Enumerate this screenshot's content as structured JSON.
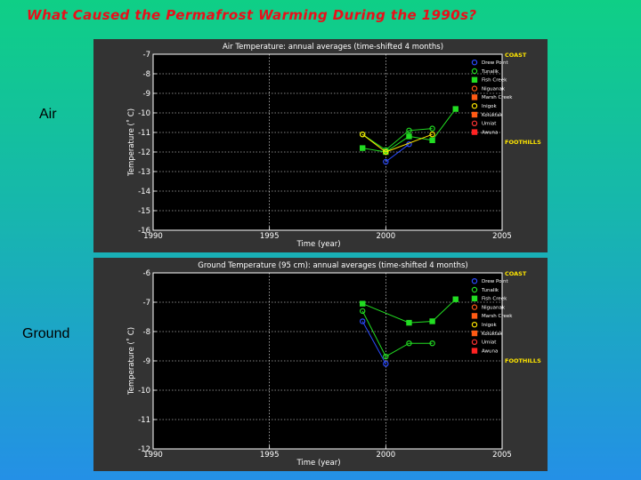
{
  "slide": {
    "title": "What Caused the Permafrost Warming During the 1990s?",
    "labels": {
      "air": "Air",
      "ground": "Ground"
    }
  },
  "legend": {
    "coast_label": "COAST",
    "foothills_label": "FOOTHILLS",
    "stations": [
      {
        "name": "Drew Point",
        "color": "#2a4bff",
        "marker": "circle"
      },
      {
        "name": "Tunalik",
        "color": "#22dd22",
        "marker": "circle"
      },
      {
        "name": "Fish Creek",
        "color": "#22dd22",
        "marker": "square"
      },
      {
        "name": "Niguanak",
        "color": "#ff5a14",
        "marker": "circle"
      },
      {
        "name": "Marsh Creek",
        "color": "#ff5a14",
        "marker": "square"
      },
      {
        "name": "Inigok",
        "color": "#ffe600",
        "marker": "circle"
      },
      {
        "name": "Koluktak",
        "color": "#ff5a14",
        "marker": "square"
      },
      {
        "name": "Umiat",
        "color": "#ff3333",
        "marker": "circle"
      },
      {
        "name": "Awuna",
        "color": "#ff2222",
        "marker": "square"
      }
    ]
  },
  "chart_data": [
    {
      "type": "line",
      "title": "Air Temperature: annual averages (time-shifted 4 months)",
      "xlabel": "Time (year)",
      "ylabel": "Temperature (˚ C)",
      "xlim": [
        1990,
        2005
      ],
      "ylim": [
        -16,
        -7
      ],
      "xticks": [
        1990,
        1995,
        2000,
        2005
      ],
      "yticks": [
        -7,
        -8,
        -9,
        -10,
        -11,
        -12,
        -13,
        -14,
        -15,
        -16
      ],
      "grid": true,
      "legend_position": "right",
      "series": [
        {
          "name": "Drew Point",
          "color": "#2a4bff",
          "marker": "circle",
          "x": [
            2000,
            2001
          ],
          "y": [
            -12.5,
            -11.6
          ]
        },
        {
          "name": "Tunalik",
          "color": "#22dd22",
          "marker": "circle",
          "x": [
            1999,
            2000,
            2001,
            2002
          ],
          "y": [
            -11.1,
            -11.9,
            -10.9,
            -10.8
          ]
        },
        {
          "name": "Fish Creek",
          "color": "#22dd22",
          "marker": "square",
          "x": [
            1999,
            2000,
            2001,
            2002,
            2003
          ],
          "y": [
            -11.8,
            -12.0,
            -11.2,
            -11.4,
            -9.8
          ]
        },
        {
          "name": "Inigok",
          "color": "#ffe600",
          "marker": "circle",
          "x": [
            1999,
            2000,
            2002
          ],
          "y": [
            -11.1,
            -12.0,
            -11.1
          ]
        }
      ]
    },
    {
      "type": "line",
      "title": "Ground Temperature (95 cm): annual averages (time-shifted 4 months)",
      "xlabel": "Time (year)",
      "ylabel": "Temperature (˚ C)",
      "xlim": [
        1990,
        2005
      ],
      "ylim": [
        -12,
        -6
      ],
      "xticks": [
        1990,
        1995,
        2000,
        2005
      ],
      "yticks": [
        -6,
        -7,
        -8,
        -9,
        -10,
        -11,
        -12
      ],
      "grid": true,
      "legend_position": "right",
      "series": [
        {
          "name": "Drew Point",
          "color": "#2a4bff",
          "marker": "circle",
          "x": [
            1999,
            2000
          ],
          "y": [
            -7.65,
            -9.1
          ]
        },
        {
          "name": "Tunalik",
          "color": "#22dd22",
          "marker": "circle",
          "x": [
            1999,
            2000,
            2001,
            2002
          ],
          "y": [
            -7.3,
            -8.85,
            -8.4,
            -8.4
          ]
        },
        {
          "name": "Fish Creek",
          "color": "#22dd22",
          "marker": "square",
          "x": [
            1999,
            2001,
            2002,
            2003
          ],
          "y": [
            -7.05,
            -7.7,
            -7.65,
            -6.9
          ]
        }
      ]
    }
  ]
}
